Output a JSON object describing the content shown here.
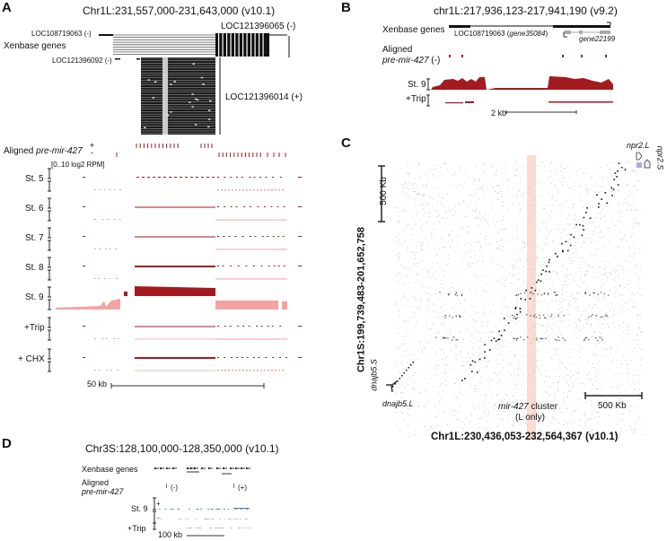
{
  "colors": {
    "plus_strand": "#a31a1f",
    "minus_strand": "#f4a3a3",
    "blue": "#5577cc",
    "highlight": "#fadcd2",
    "gene_box": "#b9a6d6"
  },
  "panelA": {
    "label": "A",
    "title": "Chr1L:231,557,000-231,643,000 (v10.1)",
    "genes_label": "Xenbase genes",
    "genes": [
      "LOC108719063 (-)",
      "LOC121396065 (-)",
      "LOC121396092 (-)",
      "LOC121396014 (+)"
    ],
    "aligned_label": "Aligned",
    "aligned_italic": "pre-mir-427",
    "plus": "+",
    "minus": "-",
    "range": "[0..10 log2 RPM]",
    "tracks": [
      "St. 5",
      "St. 6",
      "St. 7",
      "St. 8",
      "St. 9",
      "+Trip",
      "+ CHX"
    ],
    "scale": "50 kb"
  },
  "panelB": {
    "label": "B",
    "title": "chr1L:217,936,123-217,941,190 (v9.2)",
    "genes_label": "Xenbase genes",
    "gene1": "LOC108719063 (",
    "gene1_alias": "gene35084",
    "gene1_end": ")",
    "gene2": "gene22199",
    "aligned_label": "Aligned",
    "aligned_italic": "pre-mir-427",
    "aligned_strand": " (-)",
    "tracks": [
      "St. 9",
      "+Trip"
    ],
    "scale": "2 kb"
  },
  "panelC": {
    "label": "C",
    "ylabel": "Chr1S:199,739,483-201,652,758",
    "xlabel": "Chr1L:230,436,053-232,564,367 (v10.1)",
    "scale_v": "500 Kb",
    "scale_h": "500 Kb",
    "npr2L": "npr2.L",
    "npr2S": "npr2.S",
    "dnajb5S": "dnajb5.S",
    "dnajb5L": "dnajb5.L",
    "cluster_italic": "mir-427",
    "cluster": " cluster",
    "cluster_note": "(L only)"
  },
  "panelD": {
    "label": "D",
    "title": "Chr3S:128,100,000-128,350,000 (v10.1)",
    "genes_label": "Xenbase genes",
    "aligned_label": "Aligned",
    "aligned_italic": "pre-mir-427",
    "minus_strand": "(-)",
    "plus_strand": "(+)",
    "plus": "+",
    "minus": "-",
    "tracks": [
      "St. 9",
      "+Trip"
    ],
    "scale": "100 kb"
  }
}
